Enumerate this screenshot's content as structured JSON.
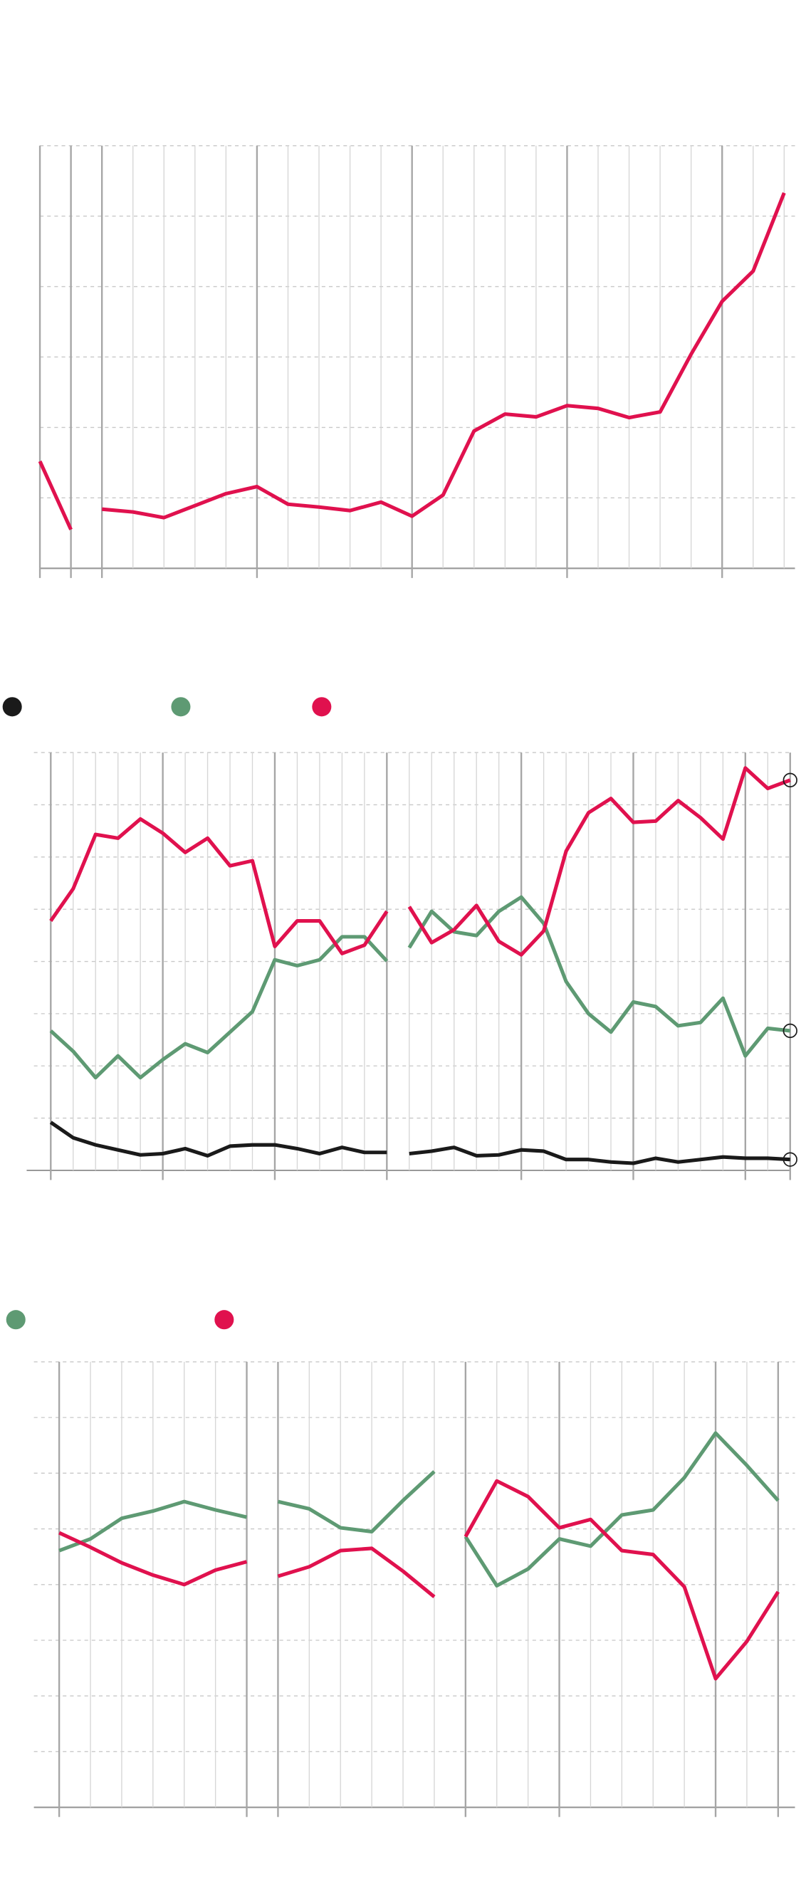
{
  "chart_data": [
    {
      "type": "line",
      "categories": [
        null,
        null,
        null,
        null,
        null,
        null,
        null,
        null,
        null,
        null,
        null,
        null,
        null,
        null,
        null,
        null,
        null,
        null,
        null,
        null,
        null,
        null,
        null,
        null,
        null
      ],
      "series": [
        {
          "color": "#e0114e",
          "values": [
            15.2,
            5.5,
            null,
            null,
            null,
            null,
            null,
            null,
            null,
            null,
            null,
            null,
            null,
            null,
            null,
            null,
            null,
            null,
            null,
            null,
            null,
            null,
            null,
            null,
            null
          ]
        },
        {
          "color": "#e0114e",
          "values": [
            null,
            null,
            8.4,
            8.0,
            7.2,
            8.9,
            10.6,
            11.6,
            9.1,
            8.7,
            8.2,
            9.4,
            7.4,
            10.4,
            19.5,
            21.9,
            21.5,
            23.1,
            22.7,
            21.4,
            22.2,
            30.4,
            37.9,
            42.2,
            53.3
          ]
        }
      ],
      "ylim": [
        0,
        60
      ],
      "yticks": [
        0,
        10,
        20,
        30,
        40,
        50,
        60
      ],
      "grid": true,
      "xmajor": [
        0,
        1,
        2,
        7,
        12,
        17,
        22
      ]
    },
    {
      "type": "line",
      "categories": [
        null,
        null,
        null,
        null,
        null,
        null,
        null,
        null,
        null,
        null,
        null,
        null,
        null,
        null,
        null,
        null,
        null,
        null,
        null,
        null,
        null,
        null,
        null,
        null,
        null,
        null,
        null,
        null,
        null,
        null,
        null,
        null,
        null,
        null
      ],
      "series": [
        {
          "color": "#1a1a1a",
          "values": [
            11.5,
            7.8,
            6.1,
            4.9,
            3.7,
            4.0,
            5.2,
            3.5,
            5.8,
            6.1,
            6.1,
            5.2,
            4.0,
            5.5,
            4.3,
            4.3,
            null,
            null,
            null,
            null,
            null,
            null,
            null,
            null,
            null,
            null,
            null,
            null,
            null,
            null,
            null,
            null,
            null,
            null
          ]
        },
        {
          "color": "#5e9a73",
          "values": [
            33.4,
            28.5,
            22.2,
            27.4,
            22.2,
            26.5,
            30.3,
            28.2,
            33.1,
            38.0,
            50.4,
            49.0,
            50.4,
            55.9,
            55.9,
            50.1,
            null,
            null,
            null,
            null,
            null,
            null,
            null,
            null,
            null,
            null,
            null,
            null,
            null,
            null,
            null,
            null,
            null,
            null
          ]
        },
        {
          "color": "#e0114e",
          "values": [
            59.7,
            67.4,
            80.4,
            79.5,
            84.1,
            80.7,
            76.1,
            79.5,
            72.9,
            74.1,
            53.6,
            59.7,
            59.7,
            51.9,
            53.9,
            62.0,
            null,
            null,
            null,
            null,
            null,
            null,
            null,
            null,
            null,
            null,
            null,
            null,
            null,
            null,
            null,
            null,
            null,
            null
          ]
        },
        {
          "color": "#1a1a1a",
          "values": [
            null,
            null,
            null,
            null,
            null,
            null,
            null,
            null,
            null,
            null,
            null,
            null,
            null,
            null,
            null,
            null,
            4.0,
            4.6,
            5.5,
            3.5,
            3.7,
            4.9,
            4.6,
            2.6,
            2.6,
            2.0,
            1.7,
            2.9,
            2.0,
            2.6,
            3.2,
            2.9,
            2.9,
            2.6
          ]
        },
        {
          "color": "#5e9a73",
          "values": [
            null,
            null,
            null,
            null,
            null,
            null,
            null,
            null,
            null,
            null,
            null,
            null,
            null,
            null,
            null,
            null,
            53.3,
            62.0,
            57.1,
            56.2,
            62.0,
            65.4,
            59.1,
            45.2,
            37.5,
            33.1,
            40.3,
            39.2,
            34.6,
            35.4,
            41.2,
            27.4,
            34.0,
            33.4
          ]
        },
        {
          "color": "#e0114e",
          "values": [
            null,
            null,
            null,
            null,
            null,
            null,
            null,
            null,
            null,
            null,
            null,
            null,
            null,
            null,
            null,
            null,
            63.1,
            54.5,
            57.6,
            63.4,
            54.8,
            51.6,
            57.3,
            76.4,
            85.6,
            89.0,
            83.3,
            83.6,
            88.5,
            84.4,
            79.3,
            96.3,
            91.4,
            93.4
          ]
        }
      ],
      "ylim": [
        0,
        100
      ],
      "yticks": [
        0,
        12.5,
        25,
        37.5,
        50,
        62.5,
        75,
        87.5,
        100
      ],
      "grid": true,
      "xmajor": [
        0,
        5,
        10,
        15,
        21,
        26,
        31,
        33
      ],
      "end_markers": true
    },
    {
      "type": "line",
      "categories": [
        null,
        null,
        null,
        null,
        null,
        null,
        null,
        null,
        null,
        null,
        null,
        null,
        null,
        null,
        null,
        null,
        null,
        null,
        null,
        null,
        null,
        null,
        null,
        null
      ],
      "series": [
        {
          "color": "#5e9a73",
          "values": [
            46.1,
            48.2,
            51.9,
            53.2,
            54.9,
            53.4,
            52.1,
            null,
            null,
            null,
            null,
            null,
            null,
            null,
            null,
            null,
            null,
            null,
            null,
            null,
            null,
            null,
            null,
            null
          ]
        },
        {
          "color": "#e0114e",
          "values": [
            49.3,
            46.7,
            43.9,
            41.7,
            40.0,
            42.6,
            44.1,
            null,
            null,
            null,
            null,
            null,
            null,
            null,
            null,
            null,
            null,
            null,
            null,
            null,
            null,
            null,
            null,
            null
          ]
        },
        {
          "color": "#5e9a73",
          "values": [
            null,
            null,
            null,
            null,
            null,
            null,
            null,
            54.9,
            53.6,
            50.2,
            49.5,
            55.1,
            60.3,
            null,
            null,
            null,
            null,
            null,
            null,
            null,
            null,
            null,
            null,
            null
          ]
        },
        {
          "color": "#e0114e",
          "values": [
            null,
            null,
            null,
            null,
            null,
            null,
            null,
            41.5,
            43.2,
            46.1,
            46.5,
            42.4,
            37.8,
            null,
            null,
            null,
            null,
            null,
            null,
            null,
            null,
            null,
            null,
            null
          ]
        },
        {
          "color": "#5e9a73",
          "values": [
            null,
            null,
            null,
            null,
            null,
            null,
            null,
            null,
            null,
            null,
            null,
            null,
            null,
            48.6,
            39.8,
            42.8,
            48.2,
            46.9,
            52.5,
            53.4,
            59.2,
            67.2,
            61.4,
            55.1
          ]
        },
        {
          "color": "#e0114e",
          "values": [
            null,
            null,
            null,
            null,
            null,
            null,
            null,
            null,
            null,
            null,
            null,
            null,
            null,
            48.6,
            58.6,
            55.8,
            50.2,
            51.7,
            46.1,
            45.4,
            39.6,
            23.1,
            29.8,
            38.7
          ]
        }
      ],
      "ylim": [
        0,
        80
      ],
      "yticks": [
        0,
        10,
        20,
        30,
        40,
        50,
        60,
        70,
        80
      ],
      "grid": true,
      "xmajor": [
        0,
        6,
        7,
        13,
        16,
        21,
        23
      ]
    }
  ]
}
